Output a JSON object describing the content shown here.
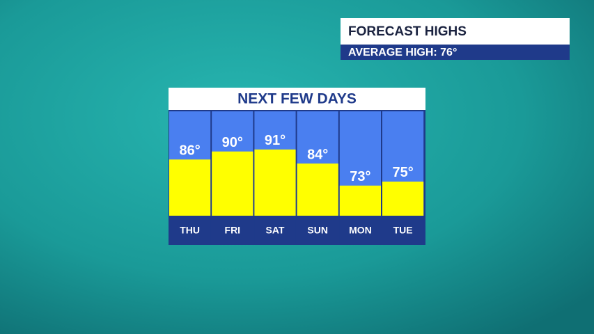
{
  "header": {
    "title": "FORECAST HIGHS",
    "subtitle": "AVERAGE HIGH: 76°"
  },
  "chart_data": {
    "type": "bar",
    "title": "NEXT FEW DAYS",
    "categories": [
      "THU",
      "FRI",
      "SAT",
      "SUN",
      "MON",
      "TUE"
    ],
    "values": [
      86,
      90,
      91,
      84,
      73,
      75
    ],
    "value_labels": [
      "86°",
      "90°",
      "91°",
      "84°",
      "73°",
      "75°"
    ],
    "color": "#ffff00",
    "ylim": [
      58,
      110
    ]
  }
}
